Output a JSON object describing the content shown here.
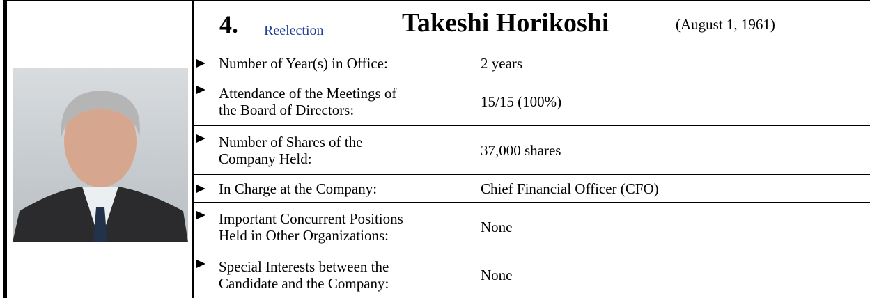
{
  "header": {
    "number": "4.",
    "tag": "Reelection",
    "name": "Takeshi Horikoshi",
    "birth_date": "(August 1, 1961)"
  },
  "table": {
    "rows": [
      {
        "label": [
          "Number of Year(s) in Office:"
        ],
        "value": "2 years"
      },
      {
        "label": [
          "Attendance of the Meetings of",
          "the Board of Directors:"
        ],
        "value": "15/15 (100%)"
      },
      {
        "label": [
          "Number of Shares of the",
          "Company Held:"
        ],
        "value": "37,000 shares"
      },
      {
        "label": [
          "In Charge at the Company:"
        ],
        "value": "Chief Financial Officer (CFO)"
      },
      {
        "label": [
          "Important Concurrent Positions",
          "Held in Other Organizations:"
        ],
        "value": "None"
      },
      {
        "label": [
          "Special Interests between the",
          "Candidate and the Company:"
        ],
        "value": "None"
      }
    ]
  }
}
